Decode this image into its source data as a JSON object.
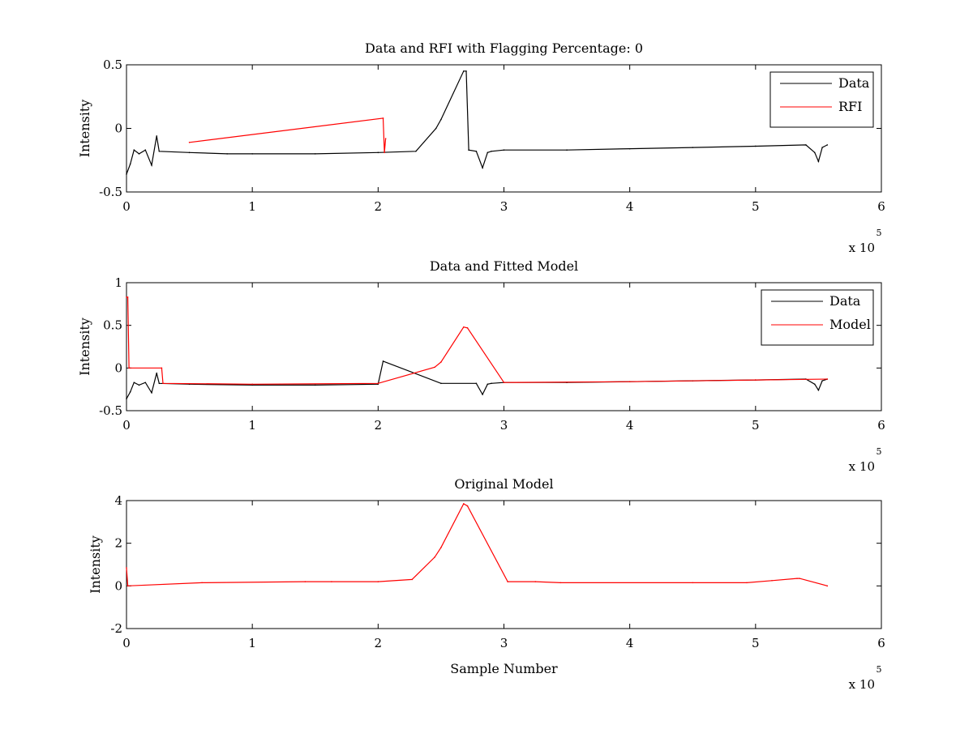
{
  "chart_data": [
    {
      "type": "line",
      "title": "Data and RFI with Flagging Percentage: 0",
      "xlabel": "",
      "ylabel": "Intensity",
      "xlim": [
        0,
        6
      ],
      "x_multiplier": "x 10",
      "x_multiplier_exp": "5",
      "ylim": [
        -0.5,
        0.5
      ],
      "xticks": [
        "0",
        "1",
        "2",
        "3",
        "4",
        "5",
        "6"
      ],
      "yticks": [
        "-0.5",
        "0",
        "0.5"
      ],
      "legend_position": "top-right",
      "series": [
        {
          "name": "Data",
          "color": "#000000",
          "x": [
            0,
            0.03,
            0.06,
            0.1,
            0.15,
            0.2,
            0.24,
            0.26,
            0.5,
            0.8,
            1.0,
            1.5,
            2.0,
            2.3,
            2.46,
            2.5,
            2.68,
            2.7,
            2.72,
            2.78,
            2.83,
            2.87,
            2.9,
            3.0,
            3.5,
            4.0,
            4.5,
            5.0,
            5.4,
            5.47,
            5.5,
            5.53,
            5.57
          ],
          "y": [
            -0.36,
            -0.28,
            -0.17,
            -0.2,
            -0.17,
            -0.29,
            -0.06,
            -0.18,
            -0.19,
            -0.2,
            -0.2,
            -0.2,
            -0.19,
            -0.18,
            0.0,
            0.07,
            0.45,
            0.45,
            -0.17,
            -0.18,
            -0.31,
            -0.19,
            -0.18,
            -0.17,
            -0.17,
            -0.16,
            -0.15,
            -0.14,
            -0.13,
            -0.19,
            -0.26,
            -0.15,
            -0.13
          ]
        },
        {
          "name": "RFI",
          "color": "#ff0000",
          "x": [
            0.5,
            2.04,
            2.05,
            2.06
          ],
          "y": [
            -0.11,
            0.08,
            -0.19,
            -0.08
          ]
        }
      ]
    },
    {
      "type": "line",
      "title": "Data and Fitted Model",
      "xlabel": "",
      "ylabel": "Intensity",
      "xlim": [
        0,
        6
      ],
      "x_multiplier": "x 10",
      "x_multiplier_exp": "5",
      "ylim": [
        -0.5,
        1
      ],
      "xticks": [
        "0",
        "1",
        "2",
        "3",
        "4",
        "5",
        "6"
      ],
      "yticks": [
        "-0.5",
        "0",
        "0.5",
        "1"
      ],
      "legend_position": "top-right",
      "series": [
        {
          "name": "Data",
          "color": "#000000",
          "x": [
            0,
            0.03,
            0.06,
            0.1,
            0.15,
            0.2,
            0.24,
            0.26,
            0.5,
            1.0,
            1.5,
            2.0,
            2.04,
            2.5,
            2.78,
            2.83,
            2.87,
            2.9,
            3.0,
            3.5,
            4.0,
            4.5,
            5.0,
            5.4,
            5.47,
            5.5,
            5.53,
            5.57
          ],
          "y": [
            -0.36,
            -0.28,
            -0.17,
            -0.2,
            -0.17,
            -0.29,
            -0.06,
            -0.18,
            -0.19,
            -0.2,
            -0.2,
            -0.19,
            0.08,
            -0.18,
            -0.18,
            -0.31,
            -0.19,
            -0.18,
            -0.17,
            -0.17,
            -0.16,
            -0.15,
            -0.14,
            -0.13,
            -0.19,
            -0.26,
            -0.15,
            -0.13
          ]
        },
        {
          "name": "Model",
          "color": "#ff0000",
          "x": [
            0,
            0.01,
            0.02,
            0.28,
            0.29,
            1.0,
            2.0,
            2.45,
            2.5,
            2.68,
            2.71,
            3.0,
            4.0,
            5.0,
            5.57
          ],
          "y": [
            0.83,
            0.83,
            0.0,
            0.0,
            -0.18,
            -0.19,
            -0.18,
            0.01,
            0.07,
            0.48,
            0.47,
            -0.17,
            -0.16,
            -0.14,
            -0.13
          ]
        }
      ]
    },
    {
      "type": "line",
      "title": "Original Model",
      "xlabel": "Sample Number",
      "ylabel": "Intensity",
      "xlim": [
        0,
        6
      ],
      "x_multiplier": "x 10",
      "x_multiplier_exp": "5",
      "ylim": [
        -2,
        4
      ],
      "xticks": [
        "0",
        "1",
        "2",
        "3",
        "4",
        "5",
        "6"
      ],
      "yticks": [
        "-2",
        "0",
        "2",
        "4"
      ],
      "series": [
        {
          "name": "",
          "color": "#ff0000",
          "x": [
            0,
            0.01,
            0.6,
            1.42,
            1.63,
            2.0,
            2.27,
            2.45,
            2.5,
            2.68,
            2.71,
            3.03,
            3.25,
            3.45,
            4.5,
            4.93,
            5.13,
            5.33,
            5.35,
            5.57
          ],
          "y": [
            0.85,
            0.0,
            0.15,
            0.2,
            0.2,
            0.2,
            0.3,
            1.35,
            1.8,
            3.85,
            3.75,
            0.2,
            0.2,
            0.15,
            0.15,
            0.15,
            0.25,
            0.35,
            0.35,
            0.0
          ]
        }
      ]
    }
  ]
}
